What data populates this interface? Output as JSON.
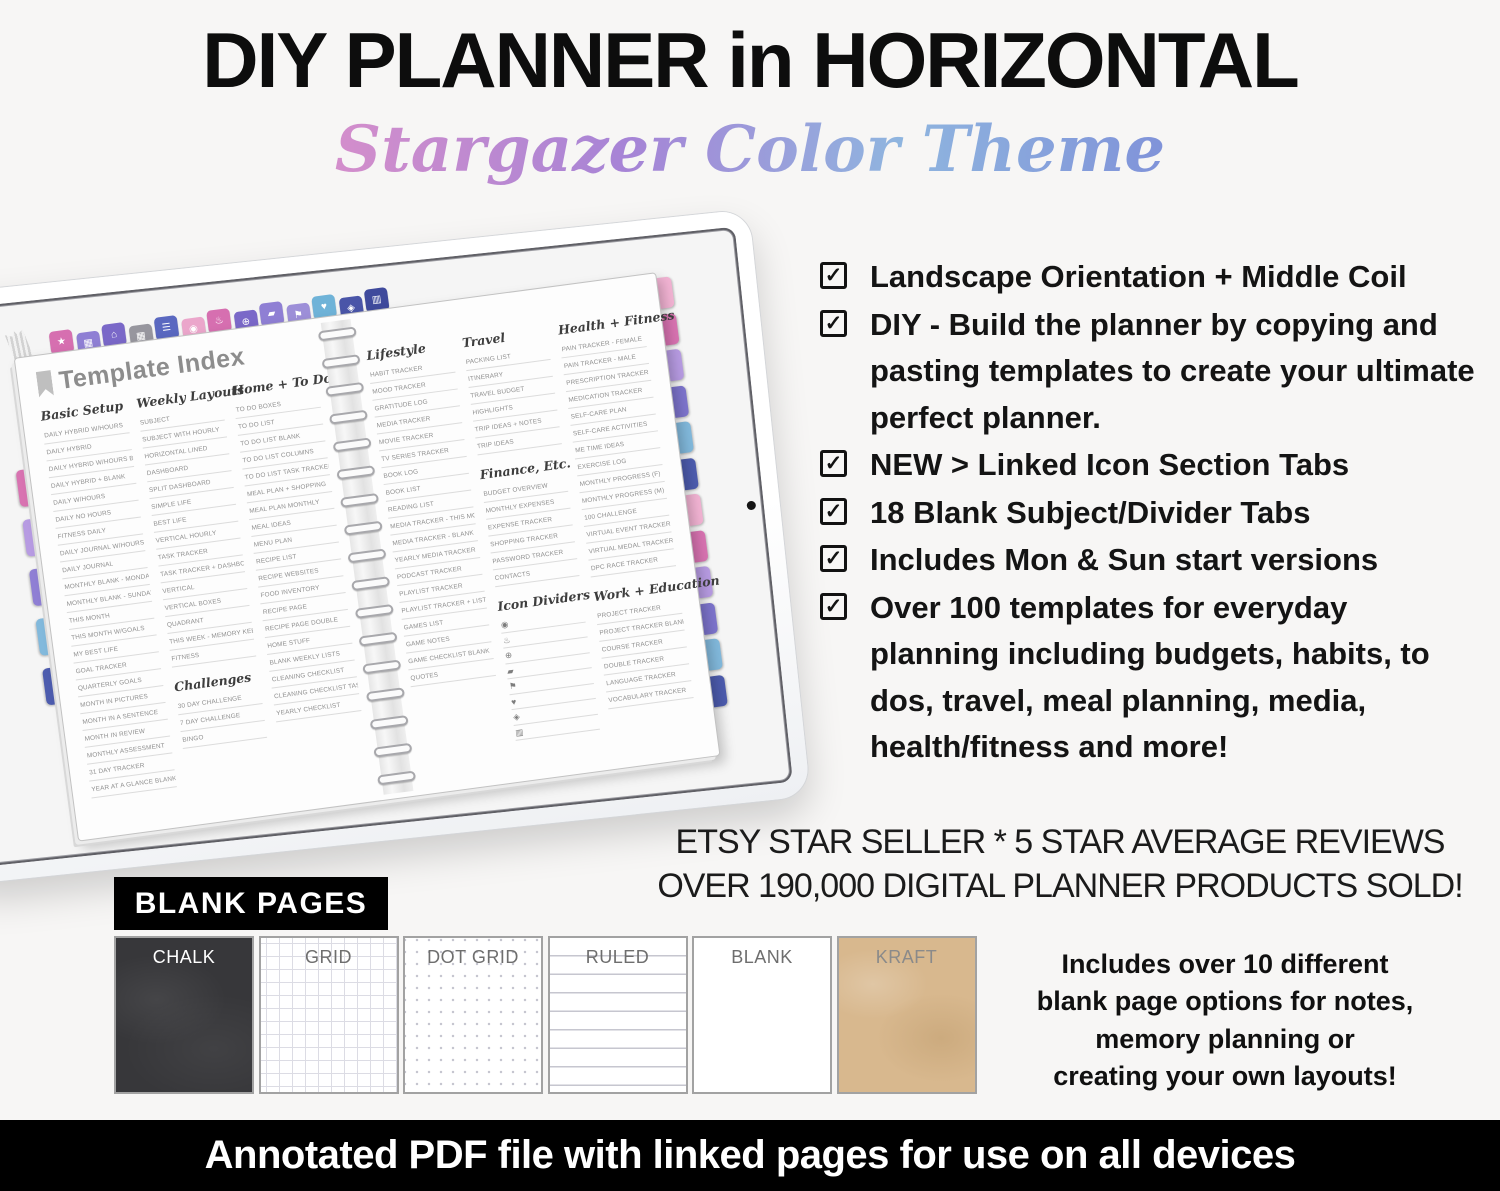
{
  "header": {
    "title": "DIY PLANNER in HORIZONTAL",
    "subtitle": "Stargazer Color Theme"
  },
  "icons": {
    "check_icon": "✓"
  },
  "features": {
    "items": [
      "Landscape Orientation + Middle Coil",
      "DIY - Build the planner by copying and pasting templates to create your ultimate perfect planner.",
      "NEW > Linked Icon Section Tabs",
      "18 Blank Subject/Divider Tabs",
      "Includes Mon & Sun start versions",
      "Over 100 templates for everyday planning including budgets, habits, to dos, travel, meal planning, media, health/fitness and more!"
    ]
  },
  "social_proof": {
    "line1": "ETSY STAR SELLER * 5 STAR AVERAGE REVIEWS",
    "line2": "OVER 190,000 DIGITAL PLANNER PRODUCTS SOLD!"
  },
  "blank_pages": {
    "label": "BLANK PAGES",
    "swatches": [
      {
        "label": "CHALK",
        "style": "chalk"
      },
      {
        "label": "GRID",
        "style": "grid"
      },
      {
        "label": "DOT GRID",
        "style": "dotgrid"
      },
      {
        "label": "RULED",
        "style": "ruled"
      },
      {
        "label": "BLANK",
        "style": "blank"
      },
      {
        "label": "KRAFT",
        "style": "kraft"
      }
    ],
    "description_lines": [
      "Includes over 10 different",
      "blank page options for notes,",
      "memory planning or",
      "creating your own layouts!"
    ]
  },
  "footer": {
    "text": "Annotated PDF file with linked pages for use on all devices"
  },
  "planner": {
    "page_title": "Template Index",
    "top_tabs": [
      {
        "icon": "star",
        "color": "#d66fb0"
      },
      {
        "icon": "calendar",
        "color": "#8f7fd4"
      },
      {
        "icon": "home",
        "color": "#7a68c8"
      },
      {
        "icon": "grid",
        "color": "#97969e"
      },
      {
        "icon": "list",
        "color": "#5a68c0"
      },
      {
        "icon": "camera",
        "color": "#eba6cb"
      },
      {
        "icon": "utensils",
        "color": "#d66fb0"
      },
      {
        "icon": "globe",
        "color": "#7a68c8"
      },
      {
        "icon": "briefcase",
        "color": "#8f7fd4"
      },
      {
        "icon": "location-pin",
        "color": "#9d8fd8"
      },
      {
        "icon": "heart",
        "color": "#6fb3d8"
      },
      {
        "icon": "dumbbell",
        "color": "#4a55a8"
      },
      {
        "icon": "bank",
        "color": "#3f4a9c"
      }
    ],
    "side_tabs_left": [
      "#d873b1",
      "#b79be2",
      "#8f7fd4",
      "#82b9dc",
      "#4d5cae"
    ],
    "side_tabs_right": [
      "#f2b3d3",
      "#d873b1",
      "#b79be2",
      "#7d74cc",
      "#82b9dc",
      "#4d5cae",
      "#f2b3d3",
      "#d873b1",
      "#b79be2",
      "#7d74cc",
      "#82b9dc",
      "#4d5cae"
    ],
    "col_basic": {
      "title": "Basic Setup",
      "items": [
        "DAILY HYBRID W/HOURS",
        "DAILY HYBRID",
        "DAILY HYBRID W/HOURS BLANK",
        "DAILY HYBRID + BLANK",
        "DAILY W/HOURS",
        "DAILY NO HOURS",
        "FITNESS DAILY",
        "DAILY JOURNAL W/HOURS",
        "DAILY JOURNAL",
        "MONTHLY BLANK - MONDAY",
        "MONTHLY BLANK - SUNDAY",
        "THIS MONTH",
        "THIS MONTH W/GOALS",
        "MY BEST LIFE",
        "GOAL TRACKER",
        "QUARTERLY GOALS",
        "MONTH IN PICTURES",
        "MONTH IN A SENTENCE",
        "MONTH IN REVIEW",
        "MONTHLY ASSESSMENT",
        "31 DAY TRACKER",
        "YEAR AT A GLANCE BLANK"
      ]
    },
    "col_weekly": {
      "title": "Weekly Layouts",
      "items": [
        "SUBJECT",
        "SUBJECT WITH HOURLY",
        "HORIZONTAL LINED",
        "DASHBOARD",
        "SPLIT DASHBOARD",
        "SIMPLE LIFE",
        "BEST LIFE",
        "VERTICAL HOURLY",
        "TASK TRACKER",
        "TASK TRACKER + DASHBOARD",
        "VERTICAL",
        "VERTICAL BOXES",
        "QUADRANT",
        "THIS WEEK - MEMORY KEEPING",
        "FITNESS"
      ]
    },
    "col_challenges": {
      "title": "Challenges",
      "items": [
        "30 DAY CHALLENGE",
        "7 DAY CHALLENGE",
        "BINGO"
      ]
    },
    "col_home": {
      "title": "Home + To Do",
      "items": [
        "TO DO BOXES",
        "TO DO LIST",
        "TO DO LIST BLANK",
        "TO DO LIST COLUMNS",
        "TO DO LIST TASK TRACKER",
        "MEAL PLAN + SHOPPING",
        "MEAL PLAN MONTHLY",
        "MEAL IDEAS",
        "MENU PLAN",
        "RECIPE LIST",
        "RECIPE WEBSITES",
        "FOOD INVENTORY",
        "RECIPE PAGE",
        "RECIPE PAGE DOUBLE",
        "HOME STUFF",
        "BLANK WEEKLY LISTS",
        "CLEANING CHECKLIST",
        "CLEANING CHECKLIST TASKS",
        "YEARLY CHECKLIST"
      ]
    },
    "col_lifestyle": {
      "title": "Lifestyle",
      "items": [
        "HABIT TRACKER",
        "MOOD TRACKER",
        "GRATITUDE LOG",
        "MEDIA TRACKER",
        "MOVIE TRACKER",
        "TV SERIES TRACKER",
        "BOOK LOG",
        "BOOK LIST",
        "READING LIST",
        "MEDIA TRACKER - THIS MONTH",
        "MEDIA TRACKER - BLANK",
        "YEARLY MEDIA TRACKER",
        "PODCAST TRACKER",
        "PLAYLIST TRACKER",
        "PLAYLIST TRACKER + LIST",
        "GAMES LIST",
        "GAME NOTES",
        "GAME CHECKLIST BLANK",
        "QUOTES"
      ]
    },
    "col_travel": {
      "title": "Travel",
      "items": [
        "PACKING LIST",
        "ITINERARY",
        "TRAVEL BUDGET",
        "HIGHLIGHTS",
        "TRIP IDEAS + NOTES",
        "TRIP IDEAS"
      ]
    },
    "col_finance": {
      "title": "Finance, Etc.",
      "items": [
        "BUDGET OVERVIEW",
        "MONTHLY EXPENSES",
        "EXPENSE TRACKER",
        "SHOPPING TRACKER",
        "PASSWORD TRACKER",
        "CONTACTS"
      ]
    },
    "col_icon_dividers": {
      "title": "Icon Dividers",
      "icons": [
        "camera",
        "utensils",
        "globe",
        "briefcase",
        "location-pin",
        "heart",
        "dumbbell",
        "bank"
      ]
    },
    "col_health": {
      "title": "Health + Fitness",
      "items": [
        "PAIN TRACKER - FEMALE",
        "PAIN TRACKER - MALE",
        "PRESCRIPTION TRACKER",
        "MEDICATION TRACKER",
        "SELF-CARE PLAN",
        "SELF-CARE ACTIVITIES",
        "ME TIME IDEAS",
        "EXERCISE LOG",
        "MONTHLY PROGRESS (F)",
        "MONTHLY PROGRESS (M)",
        "100 CHALLENGE",
        "VIRTUAL EVENT TRACKER",
        "VIRTUAL MEDAL TRACKER",
        "DPC RACE TRACKER"
      ]
    },
    "col_work": {
      "title": "Work + Education",
      "items": [
        "PROJECT TRACKER",
        "PROJECT TRACKER BLANK",
        "COURSE TRACKER",
        "DOUBLE TRACKER",
        "LANGUAGE TRACKER",
        "VOCABULARY TRACKER"
      ]
    }
  }
}
